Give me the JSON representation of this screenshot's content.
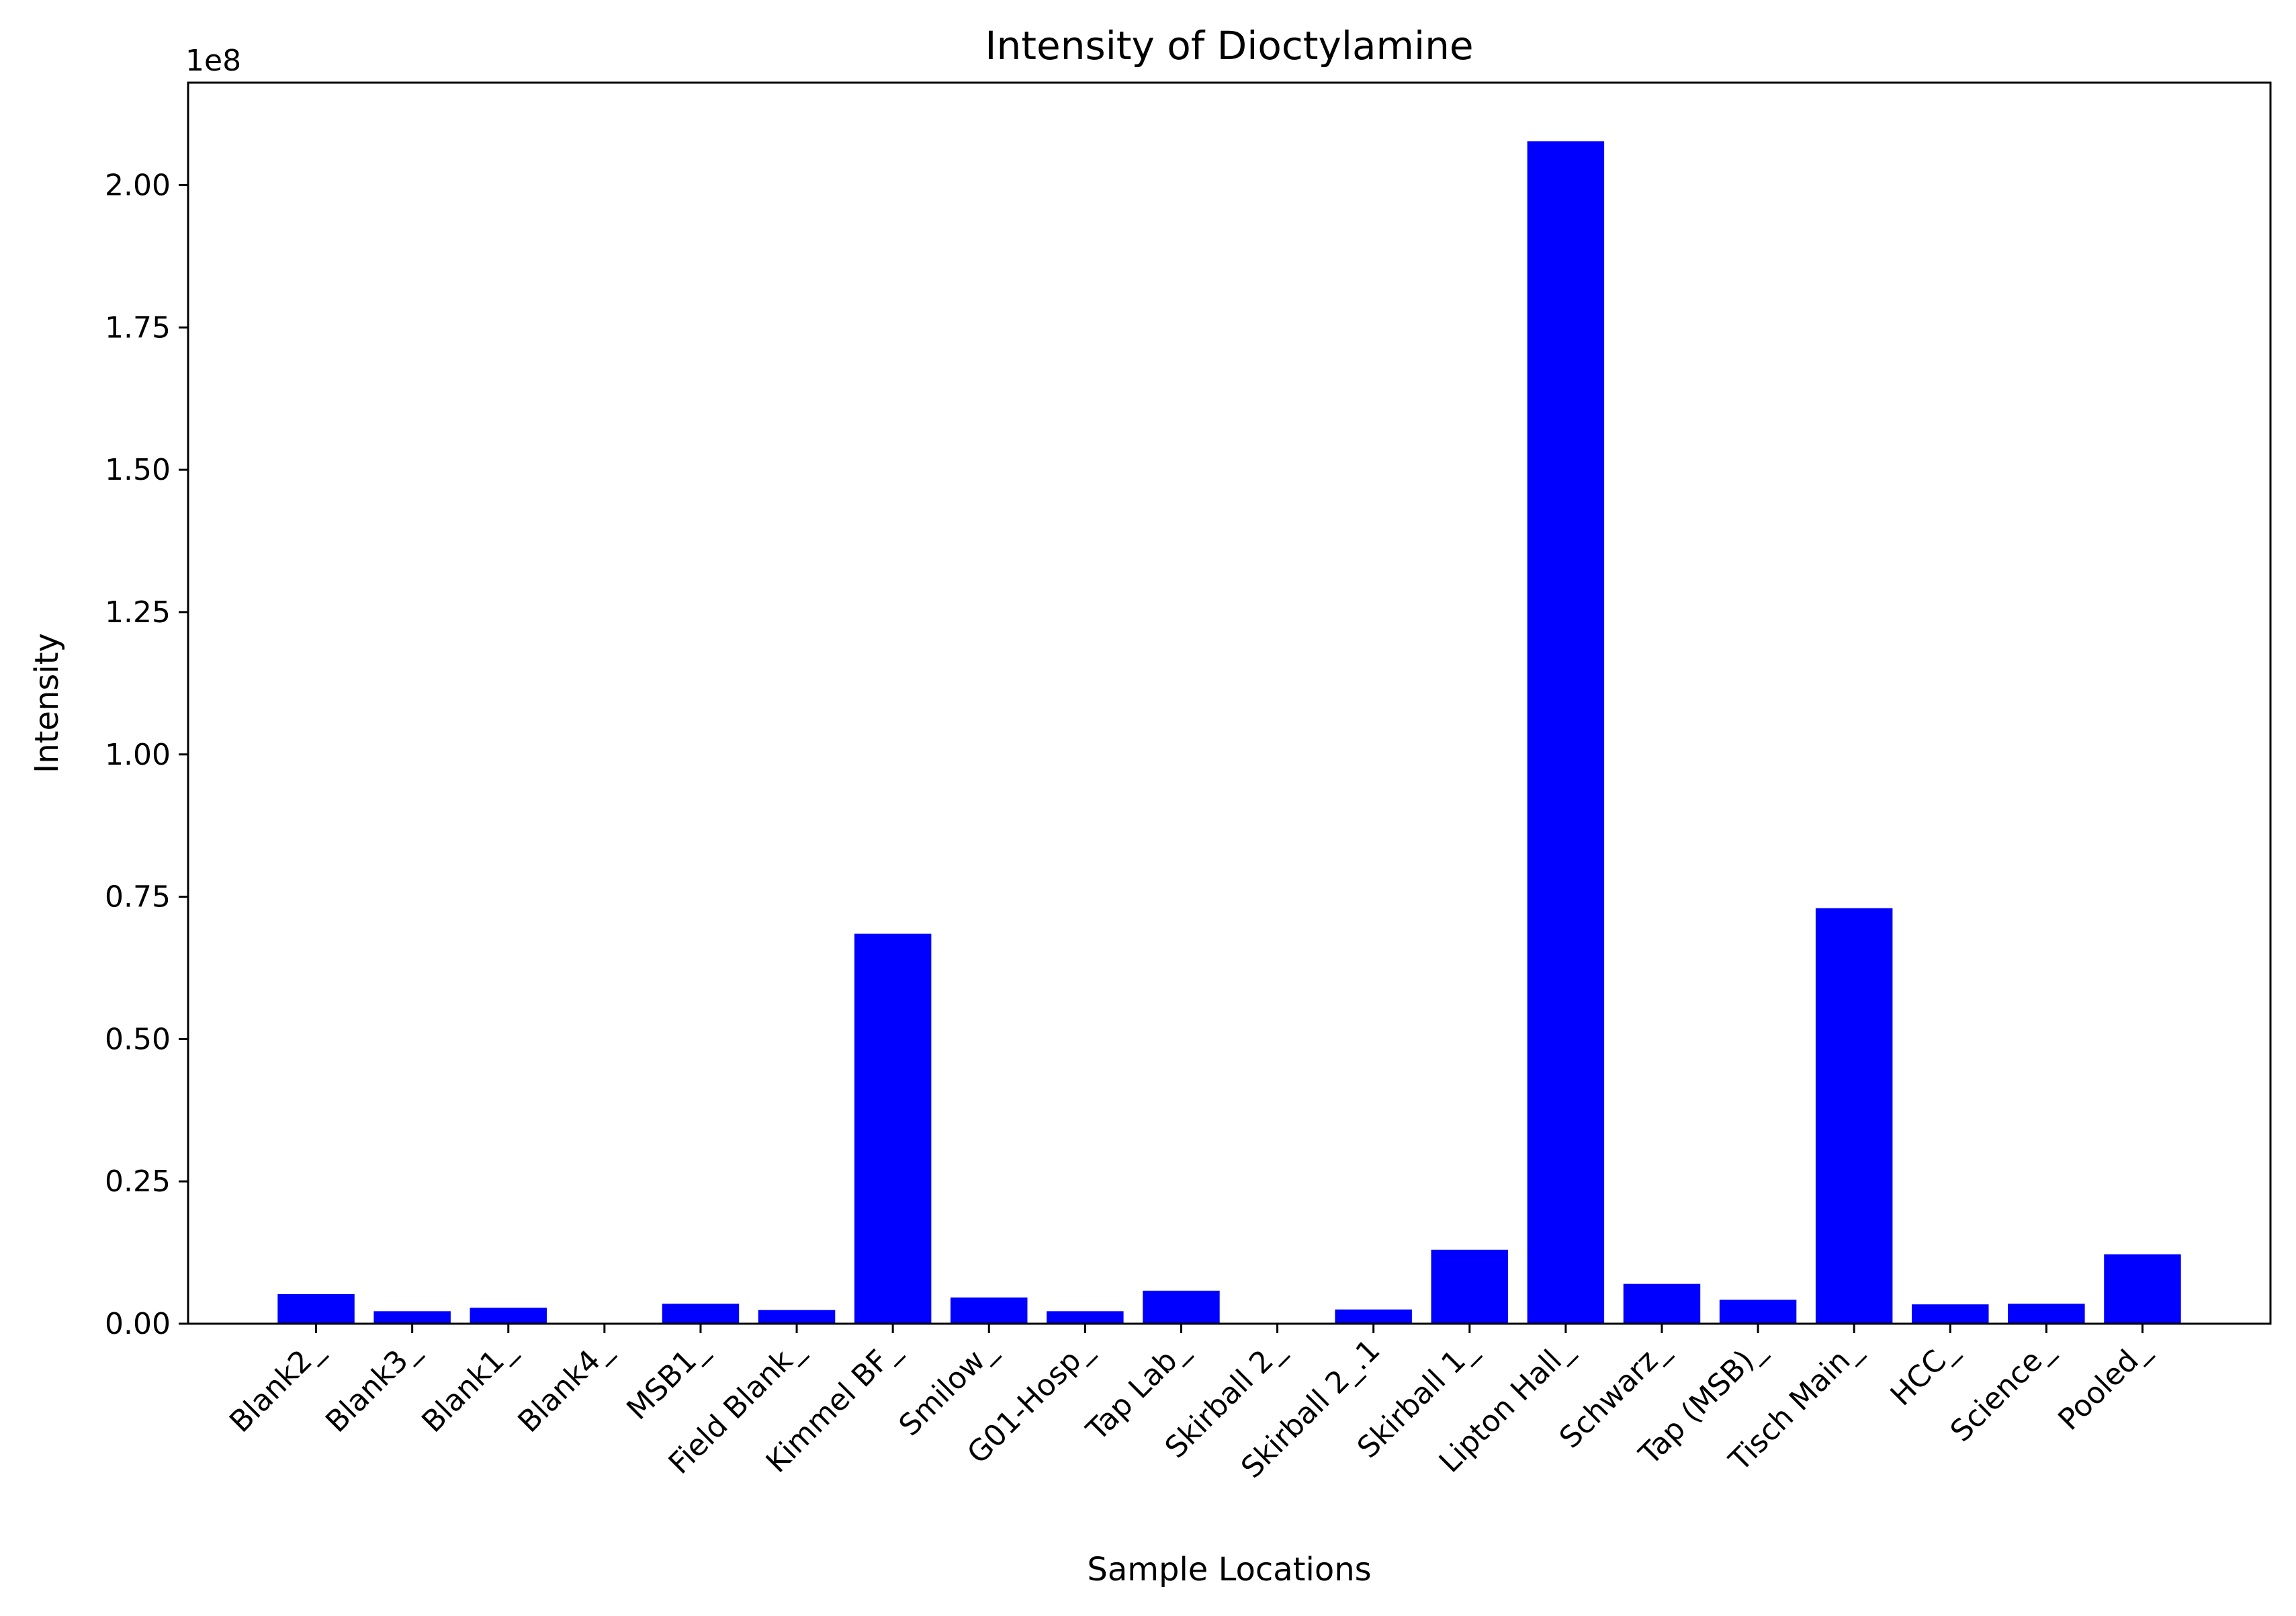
{
  "chart_data": {
    "type": "bar",
    "title": "Intensity of Dioctylamine",
    "xlabel": "Sample Locations",
    "ylabel": "Intensity",
    "offset_label": "1e8",
    "categories": [
      "Blank2_",
      "Blank3_",
      "Blank1_",
      "Blank4_",
      "MSB1_",
      "Field Blank_",
      "Kimmel BF_",
      "Smilow_",
      "G01-Hosp_",
      "Tap Lab_",
      "Skirball 2_",
      "Skirball 2_.1",
      "Skirball 1_",
      "Lipton Hall_",
      "Schwarz_",
      "Tap (MSB)_",
      "Tisch Main_",
      "HCC_",
      "Science_",
      "Pooled_"
    ],
    "values": [
      5200000,
      2200000,
      2800000,
      0,
      3500000,
      2400000,
      68500000,
      4600000,
      2200000,
      5800000,
      0,
      2500000,
      13000000,
      207700000,
      7000000,
      4200000,
      73000000,
      3400000,
      3500000,
      12200000
    ],
    "ylim": [
      0,
      218000000
    ],
    "yticks": [
      0,
      25000000,
      50000000,
      75000000,
      100000000,
      125000000,
      150000000,
      175000000,
      200000000
    ],
    "ytick_labels": [
      "0.00",
      "0.25",
      "0.50",
      "0.75",
      "1.00",
      "1.25",
      "1.50",
      "1.75",
      "2.00"
    ],
    "bar_color": "#0000ff",
    "grid": false,
    "legend": "none"
  }
}
